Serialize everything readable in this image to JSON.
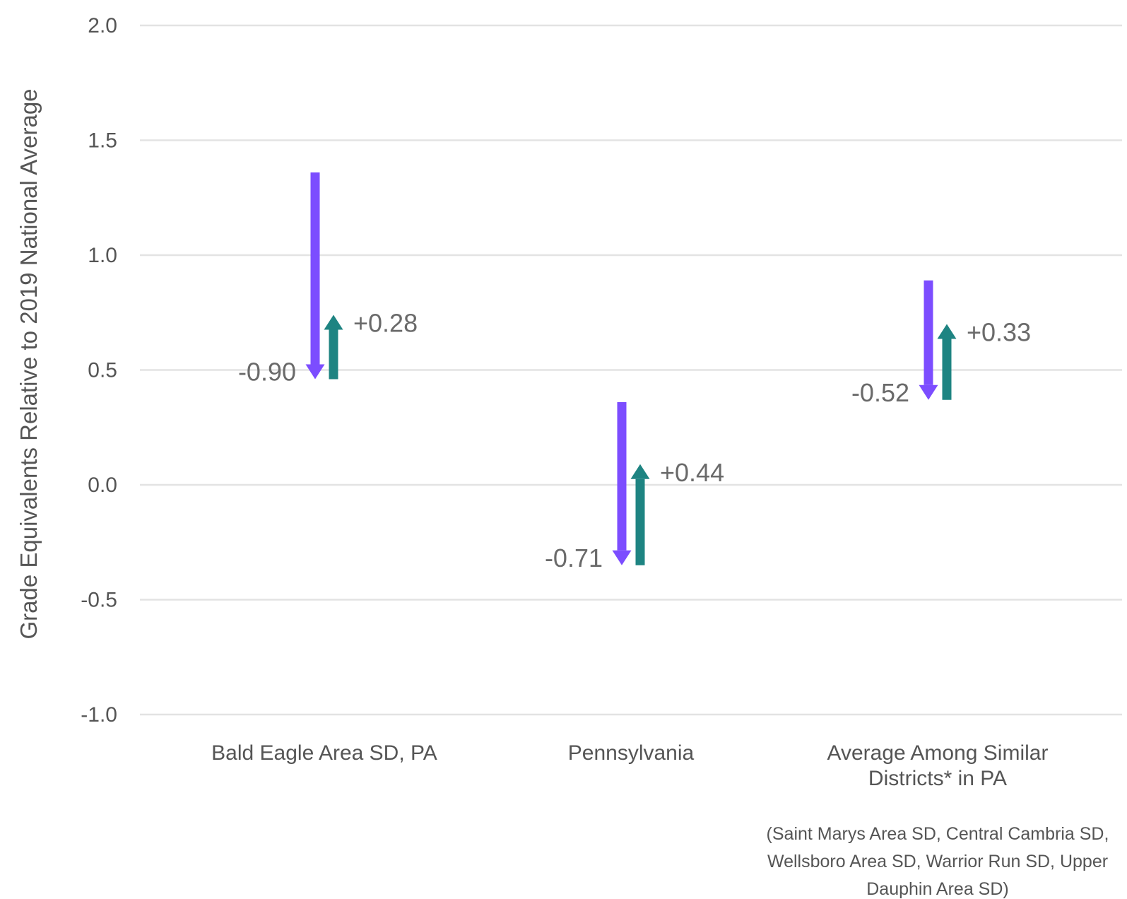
{
  "chart_data": {
    "type": "arrow-range",
    "title": "",
    "xlabel": "",
    "ylabel": "Grade Equivalents Relative to 2019 National Average",
    "ylim": [
      -1.0,
      2.0
    ],
    "yticks": [
      {
        "value": 2.0,
        "label": "2.0"
      },
      {
        "value": 1.5,
        "label": "1.5"
      },
      {
        "value": 1.0,
        "label": "1.0"
      },
      {
        "value": 0.5,
        "label": "0.5"
      },
      {
        "value": 0.0,
        "label": "0.0"
      },
      {
        "value": -0.5,
        "label": "-0.5"
      },
      {
        "value": -1.0,
        "label": "-1.0"
      }
    ],
    "grid": true,
    "categories": [
      {
        "label_lines": [
          "Bald Eagle Area SD, PA"
        ],
        "note_lines": [],
        "start": 1.36,
        "low": 0.46,
        "end": 0.74,
        "decline": -0.9,
        "decline_label": "-0.90",
        "recovery": 0.28,
        "recovery_label": "+0.28"
      },
      {
        "label_lines": [
          "Pennsylvania"
        ],
        "note_lines": [],
        "start": 0.36,
        "low": -0.35,
        "end": 0.09,
        "decline": -0.71,
        "decline_label": "-0.71",
        "recovery": 0.44,
        "recovery_label": "+0.44"
      },
      {
        "label_lines": [
          "Average Among Similar",
          "Districts* in PA"
        ],
        "note_lines": [
          "(Saint Marys Area SD, Central Cambria SD,",
          "Wellsboro Area SD, Warrior Run SD, Upper",
          "Dauphin Area SD)"
        ],
        "start": 0.89,
        "low": 0.37,
        "end": 0.7,
        "decline": -0.52,
        "decline_label": "-0.52",
        "recovery": 0.33,
        "recovery_label": "+0.33"
      }
    ],
    "colors": {
      "decline": "#7c4dff",
      "recovery": "#1e8482",
      "grid": "#e3e3e3",
      "text": "#555555",
      "data_label": "#6a6a6a"
    }
  }
}
